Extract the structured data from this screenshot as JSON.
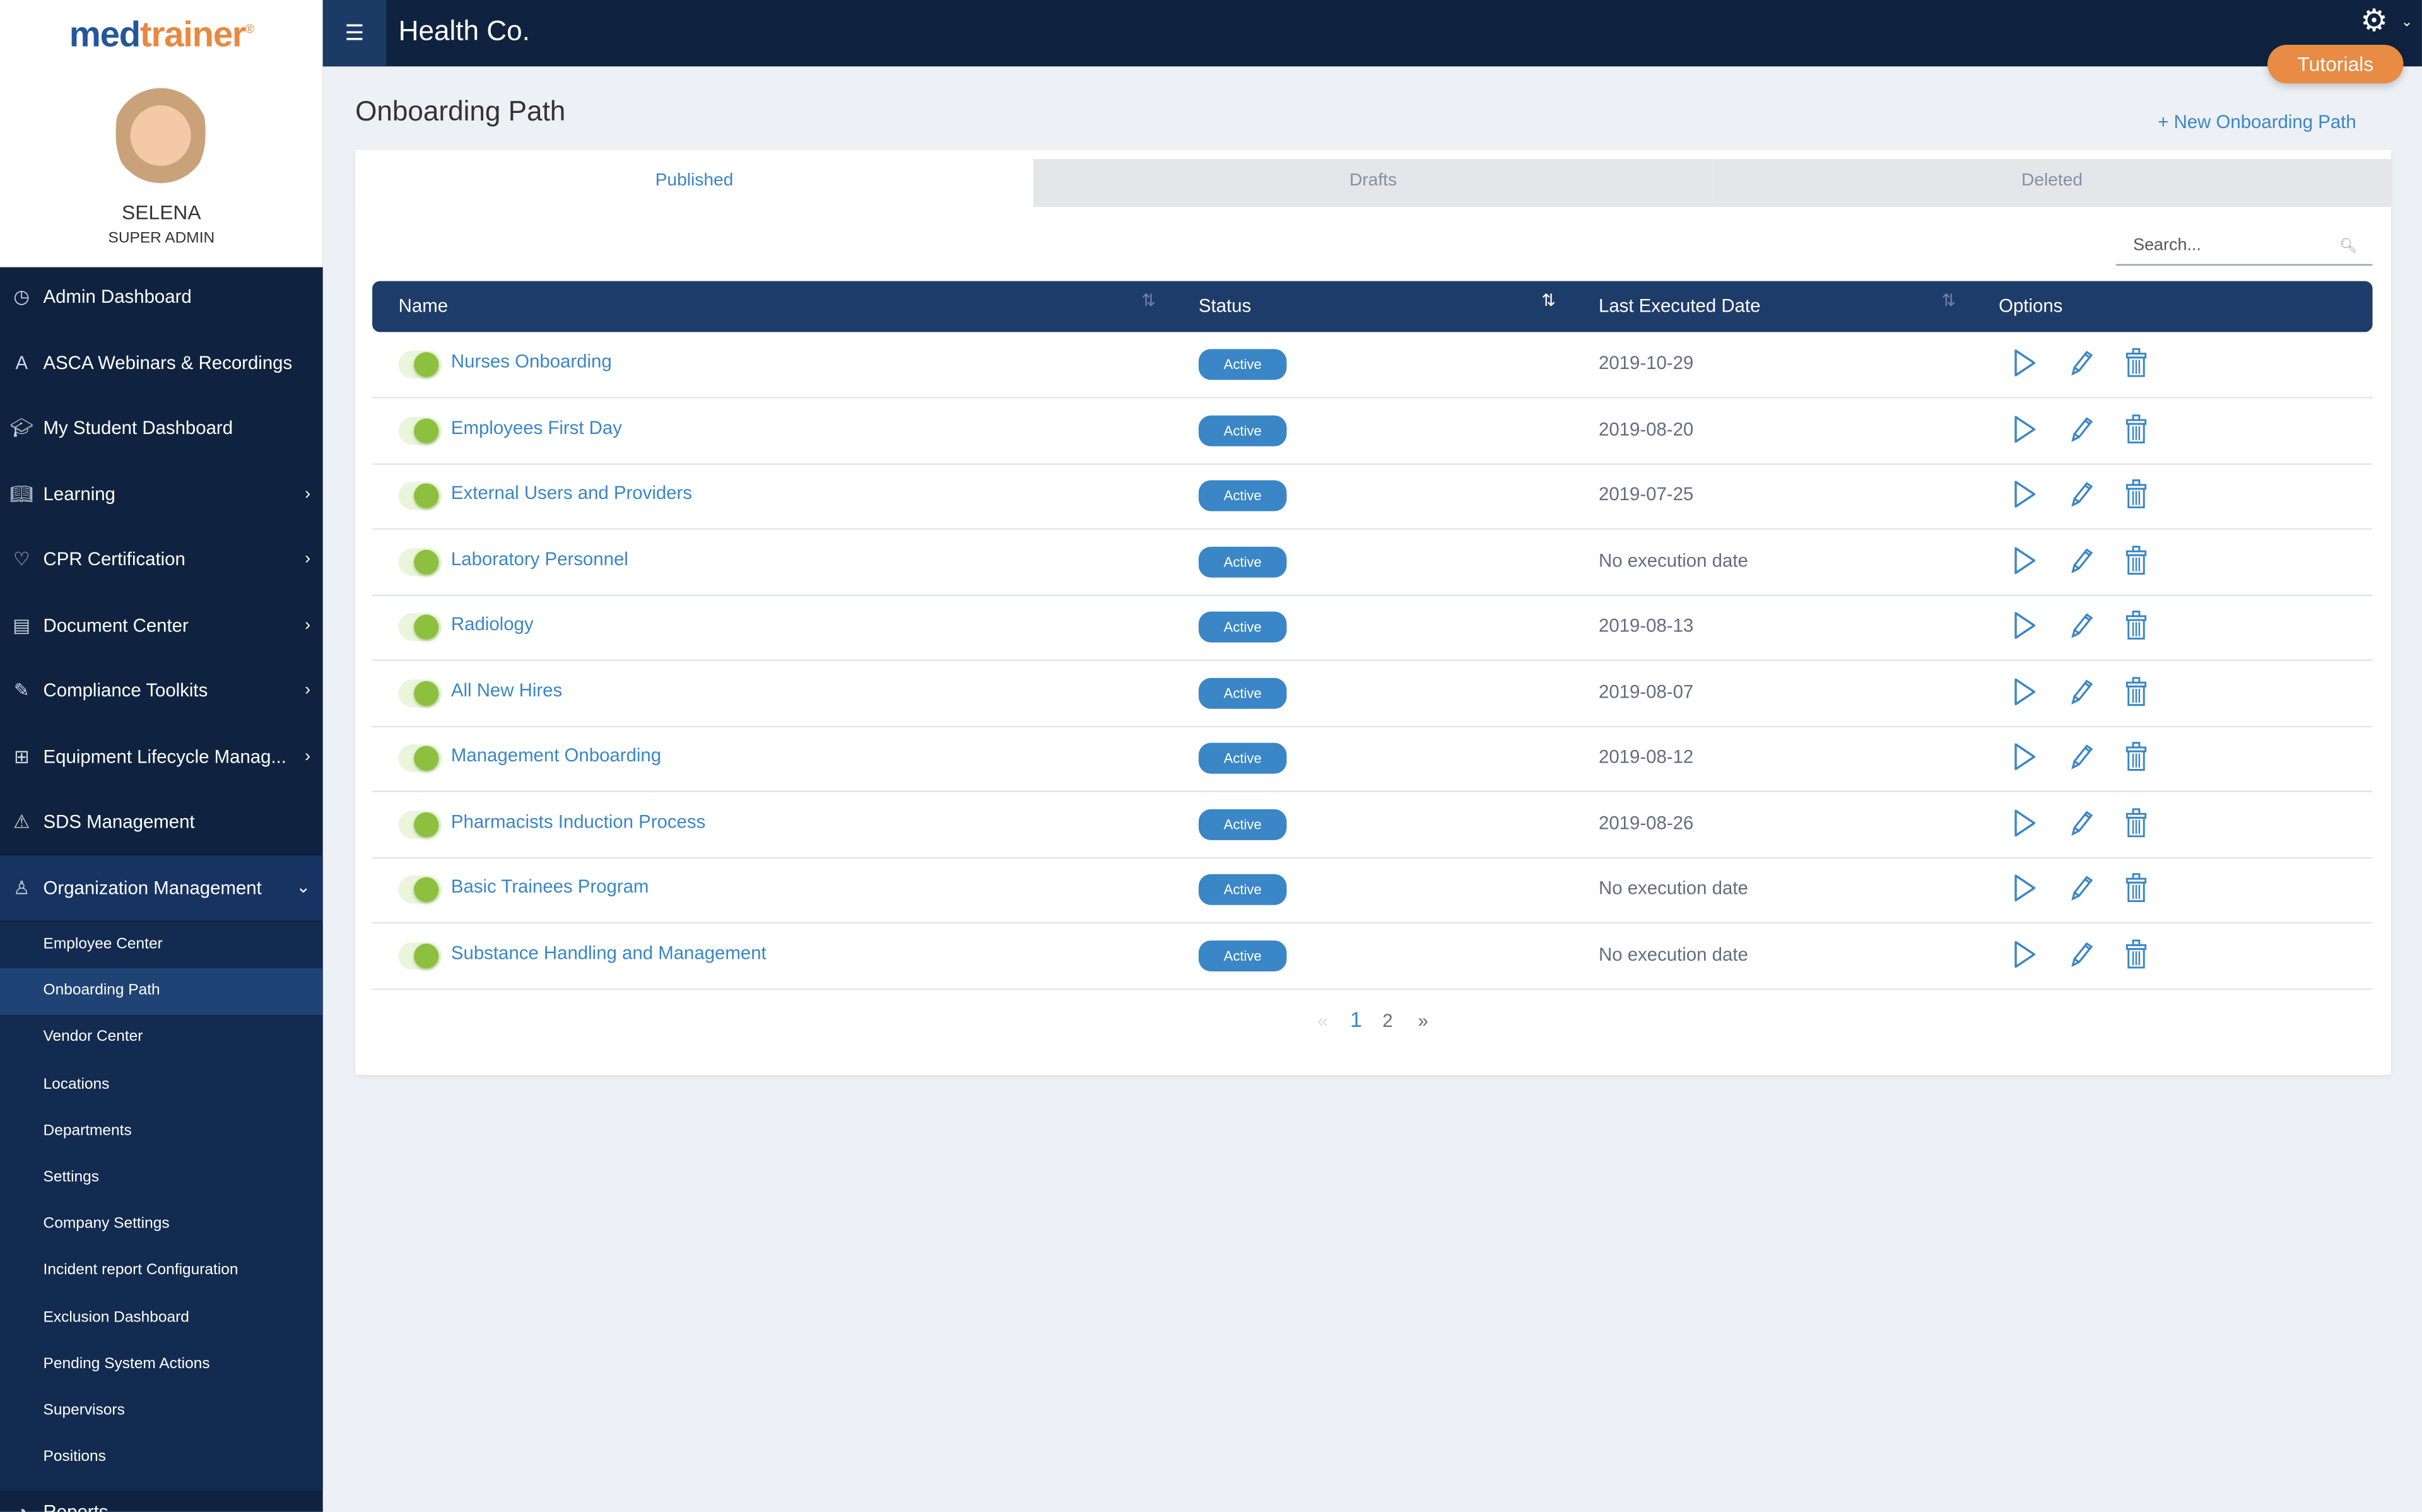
{
  "brand": {
    "logo_part1": "med",
    "logo_part2": "trainer",
    "registered": "®"
  },
  "user": {
    "name": "SELENA",
    "role": "SUPER ADMIN"
  },
  "sidebar": {
    "items": [
      {
        "label": "Admin Dashboard",
        "icon": "dashboard-gauge-icon"
      },
      {
        "label": "ASCA Webinars & Recordings",
        "icon": "webinar-icon"
      },
      {
        "label": "My Student Dashboard",
        "icon": "graduation-cap-icon"
      },
      {
        "label": "Learning",
        "icon": "book-icon",
        "chevron": "›"
      },
      {
        "label": "CPR Certification",
        "icon": "heart-pulse-icon",
        "chevron": "›"
      },
      {
        "label": "Document Center",
        "icon": "documents-icon",
        "chevron": "›"
      },
      {
        "label": "Compliance Toolkits",
        "icon": "tools-icon",
        "chevron": "›"
      },
      {
        "label": "Equipment Lifecycle Manag...",
        "icon": "medical-kit-icon",
        "chevron": "›"
      },
      {
        "label": "SDS Management",
        "icon": "warning-icon"
      },
      {
        "label": "Organization Management",
        "icon": "person-icon",
        "chevron": "⌄"
      }
    ],
    "subitems": [
      "Employee Center",
      "Onboarding Path",
      "Vendor Center",
      "Locations",
      "Departments",
      "Settings",
      "Company Settings",
      "Incident report Configuration",
      "Exclusion Dashboard",
      "Pending System Actions",
      "Supervisors",
      "Positions"
    ],
    "active_sub": "Onboarding Path",
    "partial_item": "Reports"
  },
  "topbar": {
    "org_name": "Health Co.",
    "tutorials": "Tutorials"
  },
  "page": {
    "title": "Onboarding Path",
    "new_button": "+ New Onboarding Path"
  },
  "tabs": [
    "Published",
    "Drafts",
    "Deleted"
  ],
  "active_tab": "Published",
  "search": {
    "placeholder": "Search..."
  },
  "table": {
    "headers": [
      "Name",
      "Status",
      "Last Executed Date",
      "Options"
    ],
    "rows": [
      {
        "name": "Nurses Onboarding",
        "status": "Active",
        "date": "2019-10-29",
        "enabled": true
      },
      {
        "name": "Employees First Day",
        "status": "Active",
        "date": "2019-08-20",
        "enabled": true
      },
      {
        "name": "External Users and Providers",
        "status": "Active",
        "date": "2019-07-25",
        "enabled": true
      },
      {
        "name": "Laboratory Personnel",
        "status": "Active",
        "date": "No execution date",
        "enabled": true
      },
      {
        "name": "Radiology",
        "status": "Active",
        "date": "2019-08-13",
        "enabled": true
      },
      {
        "name": "All New Hires",
        "status": "Active",
        "date": "2019-08-07",
        "enabled": true
      },
      {
        "name": "Management Onboarding",
        "status": "Active",
        "date": "2019-08-12",
        "enabled": true
      },
      {
        "name": "Pharmacists Induction Process",
        "status": "Active",
        "date": "2019-08-26",
        "enabled": true
      },
      {
        "name": "Basic Trainees Program",
        "status": "Active",
        "date": "No execution date",
        "enabled": true
      },
      {
        "name": "Substance Handling and Management",
        "status": "Active",
        "date": "No execution date",
        "enabled": true
      }
    ]
  },
  "pagination": {
    "prev": "«",
    "pages": [
      "1",
      "2"
    ],
    "current": "1",
    "next": "»"
  },
  "colors": {
    "navy": "#0f2340",
    "accent": "#3a86c6",
    "orange": "#e88b45",
    "toggle_green": "#8cc03e"
  }
}
